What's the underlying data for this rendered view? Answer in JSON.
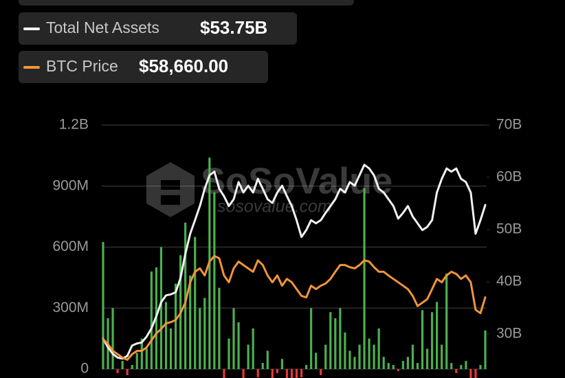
{
  "chart_data": {
    "type": "bar",
    "watermark": "SoSoValue",
    "watermark_url": "sosovalue.com",
    "categories": [
      null,
      null,
      null,
      null,
      null,
      null,
      null,
      null,
      null,
      null,
      null,
      null,
      null,
      null,
      null,
      null,
      null,
      null,
      null,
      null,
      null,
      null,
      null,
      null,
      null,
      null,
      null,
      null,
      null,
      null,
      null,
      null,
      null,
      null,
      null,
      null,
      null,
      null,
      null,
      null,
      null,
      null,
      null,
      null,
      null,
      null,
      null,
      null,
      null,
      null,
      null,
      null,
      null,
      null,
      null,
      null,
      null,
      null,
      null,
      null,
      null,
      null,
      null,
      null,
      null,
      null,
      null,
      null,
      null,
      null,
      null,
      null,
      null,
      null,
      null,
      null,
      null,
      null,
      null,
      null
    ],
    "values": [
      625,
      250,
      300,
      -20,
      40,
      -30,
      20,
      80,
      150,
      100,
      480,
      500,
      600,
      330,
      200,
      420,
      560,
      720,
      460,
      650,
      300,
      350,
      1040,
      870,
      400,
      -80,
      150,
      300,
      230,
      -60,
      120,
      200,
      -40,
      30,
      90,
      -70,
      -20,
      50,
      -50,
      -90,
      -60,
      -40,
      20,
      300,
      80,
      -30,
      120,
      280,
      250,
      300,
      180,
      90,
      60,
      120,
      890,
      150,
      120,
      200,
      60,
      30,
      20,
      -10,
      40,
      60,
      120,
      30,
      290,
      100,
      280,
      330,
      120,
      470,
      30,
      -20,
      20,
      40,
      -50,
      -80,
      20,
      190
    ],
    "colors": {
      "positive": "#4caf50",
      "negative": "#e53935"
    },
    "ylim": [
      0,
      1200
    ],
    "yticks": [
      0,
      {
        "value": 300,
        "label": "300M"
      },
      {
        "value": 600,
        "label": "600M"
      },
      {
        "value": 900,
        "label": "900M"
      },
      {
        "value": 1200,
        "label": "1.2B"
      }
    ],
    "y2lim": [
      23.3,
      70
    ],
    "y2ticks": [
      {
        "value": 30,
        "label": "30B"
      },
      {
        "value": 40,
        "label": "40B"
      },
      {
        "value": 50,
        "label": "50B"
      },
      {
        "value": 60,
        "label": "60B"
      },
      {
        "value": 70,
        "label": "70B"
      }
    ],
    "grid": true,
    "series": [
      {
        "name": "Total Net Assets",
        "value_label": "$53.75B",
        "color": "#f2f2f2",
        "axis": "y2",
        "values": [
          29.1,
          27.5,
          26.2,
          25.5,
          25.3,
          25.8,
          27.8,
          28.2,
          28.4,
          29.5,
          31.1,
          33.4,
          36.1,
          37.4,
          37.6,
          38.0,
          40.7,
          45.3,
          49.2,
          51.8,
          54.5,
          57.8,
          60.4,
          61.1,
          57.8,
          56.4,
          54.5,
          55.8,
          59.1,
          57.1,
          58.4,
          57.1,
          59.7,
          57.8,
          55.8,
          55.1,
          57.1,
          58.4,
          56.4,
          54.5,
          51.8,
          48.6,
          49.9,
          51.8,
          51.2,
          51.8,
          53.2,
          54.5,
          55.8,
          57.8,
          57.1,
          59.1,
          58.4,
          60.4,
          62.4,
          61.7,
          60.4,
          57.8,
          57.1,
          55.8,
          54.5,
          52.1,
          53.2,
          54.5,
          52.5,
          51.2,
          49.9,
          50.5,
          51.8,
          57.1,
          59.7,
          61.7,
          61.1,
          61.7,
          59.7,
          59.1,
          57.1,
          49.2,
          51.8,
          54.7
        ]
      },
      {
        "name": "BTC Price",
        "value_label": "$58,660.00",
        "color": "#f0953a",
        "ylim": [
          36000,
          115000
        ],
        "values": [
          45700,
          44100,
          41900,
          40800,
          39700,
          39000,
          40800,
          41900,
          41900,
          43000,
          45300,
          47500,
          49000,
          50800,
          51200,
          51900,
          54100,
          57500,
          64100,
          67500,
          68600,
          66300,
          70800,
          72600,
          71900,
          66300,
          64100,
          68600,
          70800,
          69700,
          68600,
          67500,
          71200,
          69700,
          66300,
          64100,
          66300,
          63000,
          65200,
          64100,
          61900,
          59700,
          59200,
          63000,
          61900,
          63000,
          63700,
          65200,
          67500,
          69700,
          69700,
          69000,
          68600,
          69700,
          71200,
          70800,
          69000,
          67500,
          67500,
          66300,
          65200,
          64100,
          63000,
          61900,
          59700,
          56400,
          57500,
          58600,
          61900,
          65200,
          64100,
          66300,
          67500,
          66800,
          65200,
          66300,
          64100,
          55200,
          54100,
          59200
        ]
      }
    ]
  }
}
